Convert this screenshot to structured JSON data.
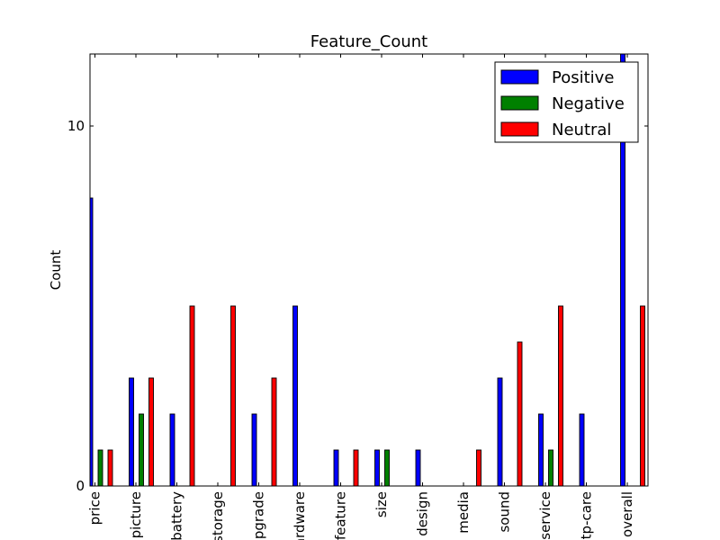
{
  "chart_data": {
    "type": "bar",
    "title": "Feature_Count",
    "xlabel": "",
    "ylabel": "Count",
    "ylim": [
      0,
      12
    ],
    "yticks": [
      0,
      10
    ],
    "legend_position": "top-right",
    "categories": [
      "price",
      "picture",
      "battery",
      "storage",
      "upgrade",
      "hardware",
      "feature",
      "size",
      "design",
      "media",
      "sound",
      "service",
      "tp-care",
      "overall"
    ],
    "series": [
      {
        "name": "Positive",
        "color": "#0000ff",
        "values": [
          8,
          3,
          2,
          0,
          2,
          5,
          1,
          1,
          1,
          0,
          3,
          2,
          2,
          12
        ]
      },
      {
        "name": "Negative",
        "color": "#008000",
        "values": [
          1,
          2,
          0,
          0,
          0,
          0,
          0,
          1,
          0,
          0,
          0,
          1,
          0,
          0
        ]
      },
      {
        "name": "Neutral",
        "color": "#ff0000",
        "values": [
          1,
          3,
          5,
          5,
          3,
          0,
          1,
          0,
          0,
          1,
          4,
          5,
          0,
          5
        ]
      }
    ]
  }
}
